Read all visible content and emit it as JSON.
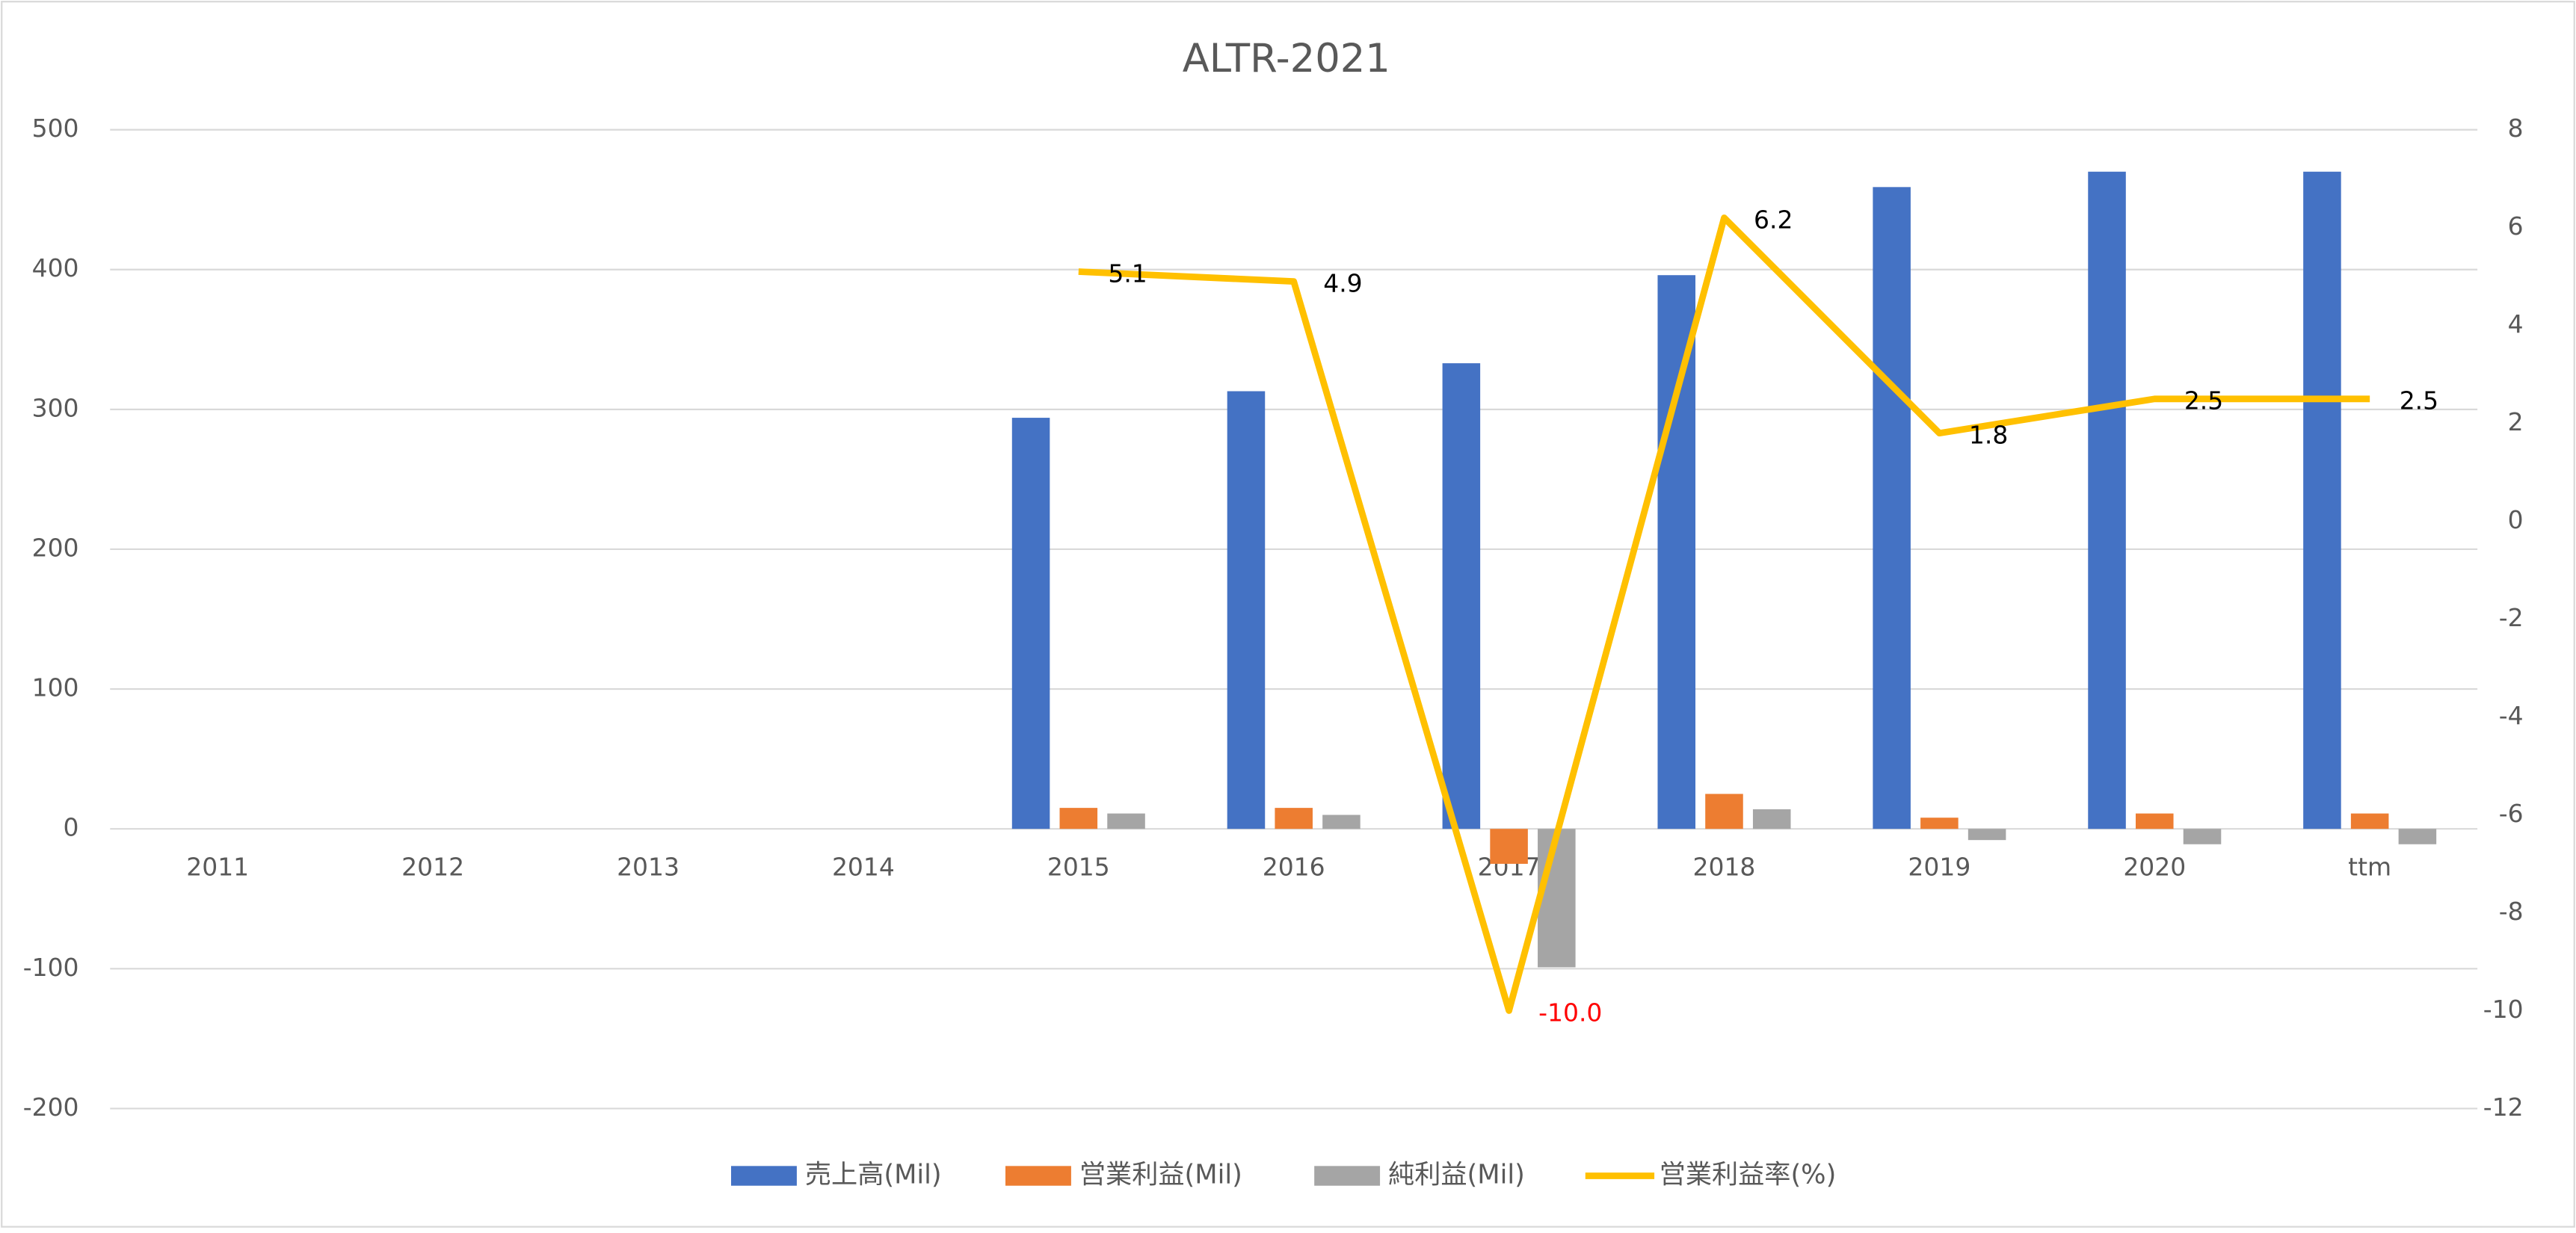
{
  "chart_data": {
    "type": "bar",
    "title": "ALTR-2021",
    "categories": [
      "2011",
      "2012",
      "2013",
      "2014",
      "2015",
      "2016",
      "2017",
      "2018",
      "2019",
      "2020",
      "ttm"
    ],
    "series": [
      {
        "name": "売上高(Mil)",
        "color": "#4472c4",
        "type": "bar",
        "values": [
          null,
          null,
          null,
          null,
          294,
          313,
          333,
          396,
          459,
          470,
          470
        ]
      },
      {
        "name": "営業利益(Mil)",
        "color": "#ed7d31",
        "type": "bar",
        "values": [
          null,
          null,
          null,
          null,
          15,
          15,
          -25,
          25,
          8,
          11,
          11
        ]
      },
      {
        "name": "純利益(Mil)",
        "color": "#a5a5a5",
        "type": "bar",
        "values": [
          null,
          null,
          null,
          null,
          11,
          10,
          -99,
          14,
          -8,
          -11,
          -11
        ]
      },
      {
        "name": "営業利益率(%)",
        "color": "#ffc000",
        "type": "line",
        "axis": "y2",
        "values": [
          null,
          null,
          null,
          null,
          5.1,
          4.9,
          -10,
          6.2,
          1.8,
          2.5,
          2.5
        ],
        "value_labels": [
          null,
          null,
          null,
          null,
          "5.1",
          "4.9",
          "-10.0",
          "6.2",
          "1.8",
          "2.5",
          "2.5"
        ]
      }
    ],
    "ylim": [
      -200,
      500
    ],
    "yticks": [
      -200,
      -100,
      0,
      100,
      200,
      300,
      400,
      500
    ],
    "y2lim": [
      -12,
      8
    ],
    "y2ticks": [
      -12,
      -10,
      -8,
      -6,
      -4,
      -2,
      0,
      2,
      4,
      6,
      8
    ],
    "grid": true,
    "legend": "bottom"
  }
}
